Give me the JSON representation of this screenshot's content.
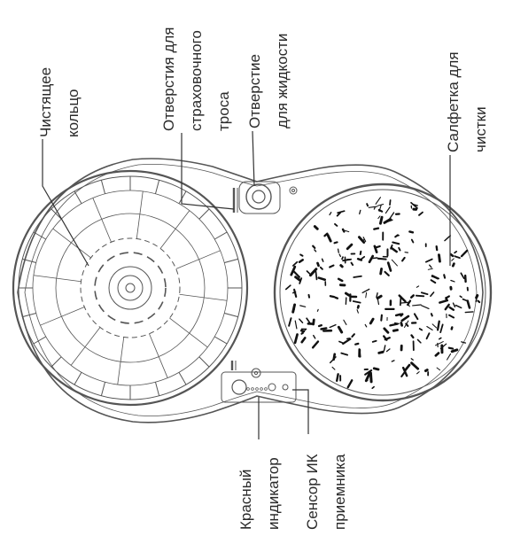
{
  "labels": {
    "cleaning_ring_1": "Чистящее",
    "cleaning_ring_2": "кольцо",
    "safety_holes_1": "Отверстия для",
    "safety_holes_2": "страховочного",
    "safety_holes_3": "троса",
    "liquid_hole_1": "Отверстие",
    "liquid_hole_2": "для жидкости",
    "wipe_1": "Салфетка для",
    "wipe_2": "чистки",
    "red_indicator_1": "Красный",
    "red_indicator_2": "индикатор",
    "ir_sensor_1": "Сенсор ИК",
    "ir_sensor_2": "приемника"
  },
  "colors": {
    "line": "#333333",
    "text": "#2a2a2a",
    "background": "#ffffff"
  }
}
